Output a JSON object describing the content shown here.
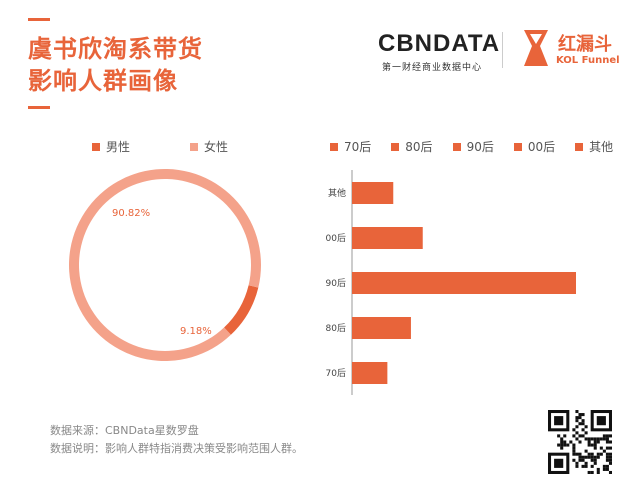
{
  "header": {
    "title_line1": "虞书欣淘系带货",
    "title_line2": "影响人群画像"
  },
  "logos": {
    "cbn_main": "CBNDATA",
    "cbn_sub": "第一财经商业数据中心",
    "kol_cn": "红漏斗",
    "kol_en": "KOL Funnel"
  },
  "colors": {
    "accent": "#e8643a",
    "female": "#f4a28a",
    "male": "#e8643a"
  },
  "chart_data": [
    {
      "type": "pie",
      "categories": [
        "男性",
        "女性"
      ],
      "values": [
        9.18,
        90.82
      ],
      "labels": [
        "9.18%",
        "90.82%"
      ],
      "colors": [
        "#e8643a",
        "#f4a28a"
      ],
      "legend_placement": "top"
    },
    {
      "type": "bar",
      "orientation": "horizontal",
      "legend": [
        "70后",
        "80后",
        "90后",
        "00后",
        "其他"
      ],
      "categories": [
        "其他",
        "00后",
        "90后",
        "80后",
        "70后"
      ],
      "values": [
        7,
        12,
        38,
        10,
        6
      ],
      "color": "#e8643a",
      "legend_placement": "top"
    }
  ],
  "footer": {
    "source": "数据来源：CBNData星数罗盘",
    "note": "数据说明：影响人群特指消费决策受影响范围人群。"
  },
  "icons": {
    "qr": "qr-code-icon"
  }
}
